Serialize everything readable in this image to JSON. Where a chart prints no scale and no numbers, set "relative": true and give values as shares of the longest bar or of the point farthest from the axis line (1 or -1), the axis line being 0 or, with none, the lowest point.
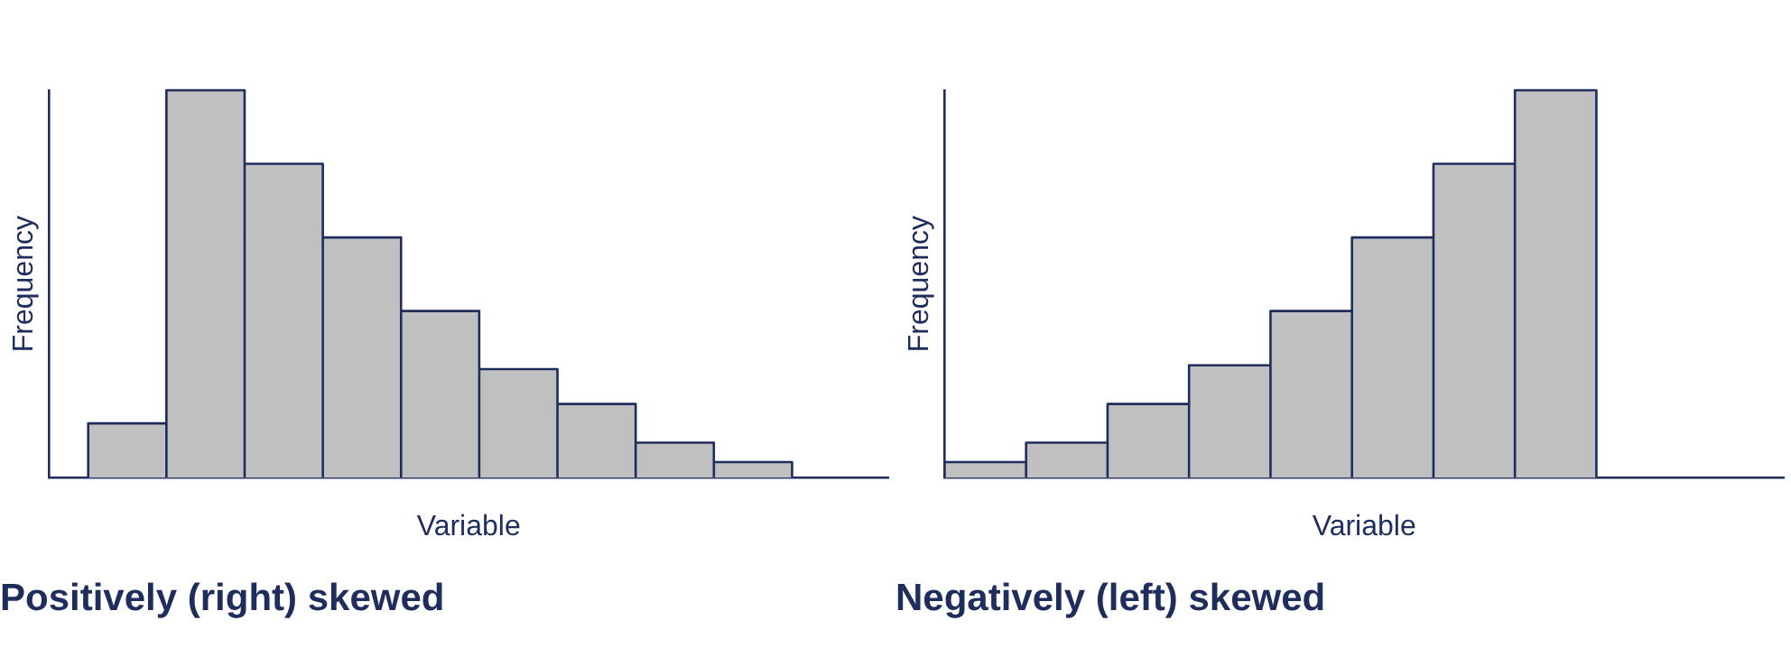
{
  "chart_data": [
    {
      "type": "bar",
      "relative": true,
      "title": "Positively (right) skewed",
      "xlabel": "Variable",
      "ylabel": "Frequency",
      "categories": [
        null,
        null,
        null,
        null,
        null,
        null,
        null,
        null,
        null
      ],
      "values": [
        0.14,
        1,
        0.81,
        0.62,
        0.43,
        0.28,
        0.19,
        0.09,
        0.04
      ],
      "color": "#c0c0c0",
      "grid": false,
      "legend": false
    },
    {
      "type": "bar",
      "relative": true,
      "title": "Negatively (left) skewed",
      "xlabel": "Variable",
      "ylabel": "Frequency",
      "categories": [
        null,
        null,
        null,
        null,
        null,
        null,
        null,
        null
      ],
      "values": [
        0.04,
        0.09,
        0.19,
        0.29,
        0.43,
        0.62,
        0.81,
        1
      ],
      "color": "#c0c0c0",
      "grid": false,
      "legend": false
    }
  ]
}
